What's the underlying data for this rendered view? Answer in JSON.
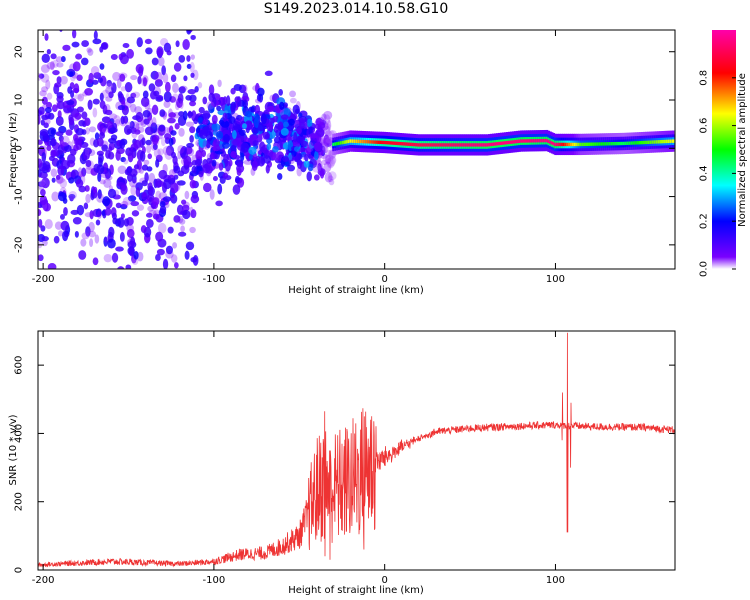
{
  "title": "S149.2023.014.10.58.G10",
  "chart_data": [
    {
      "type": "heatmap",
      "title": "",
      "xlabel": "Height of straight line (km)",
      "ylabel": "Frequency (Hz)",
      "xlim": [
        -203,
        170
      ],
      "ylim": [
        -25,
        24.5
      ],
      "x_ticks": [
        -200,
        -100,
        0,
        100
      ],
      "y_ticks": [
        -20,
        -10,
        0,
        10,
        20
      ],
      "colorbar": {
        "label": "Normalized spectral amplitude",
        "range": [
          0,
          1
        ],
        "ticks": [
          0.0,
          0.2,
          0.4,
          0.6,
          0.8
        ],
        "tick_labels": [
          "0.0",
          "0.2",
          "0.4",
          "0.6",
          "0.8"
        ],
        "colors": [
          "#ffffff",
          "#7a00ff",
          "#0000ff",
          "#00ffff",
          "#00ff00",
          "#ffff00",
          "#ff0000",
          "#ff00ff"
        ]
      },
      "features": {
        "scatter_region_x": [
          -203,
          -30
        ],
        "scatter_intensity_x": [
          -203,
          -45
        ],
        "stable_band": [
          {
            "x": -30,
            "freq": 0.8,
            "amp": 0.4
          },
          {
            "x": -20,
            "freq": 1.5,
            "amp": 0.6
          },
          {
            "x": 0,
            "freq": 1.2,
            "amp": 0.8
          },
          {
            "x": 20,
            "freq": 0.7,
            "amp": 0.85
          },
          {
            "x": 60,
            "freq": 0.7,
            "amp": 0.9
          },
          {
            "x": 80,
            "freq": 1.5,
            "amp": 0.9
          },
          {
            "x": 95,
            "freq": 1.6,
            "amp": 0.9
          },
          {
            "x": 100,
            "freq": 0.8,
            "amp": 0.9
          },
          {
            "x": 115,
            "freq": 0.8,
            "amp": 0.5
          },
          {
            "x": 140,
            "freq": 1.0,
            "amp": 0.4
          },
          {
            "x": 170,
            "freq": 1.5,
            "amp": 0.6
          }
        ]
      }
    },
    {
      "type": "line",
      "title": "",
      "xlabel": "Height of straight line (km)",
      "ylabel": "SNR (10 * v/v)",
      "xlim": [
        -203,
        170
      ],
      "ylim": [
        0,
        700
      ],
      "x_ticks": [
        -200,
        -100,
        0,
        100
      ],
      "y_ticks": [
        0,
        200,
        400,
        600
      ],
      "series": [
        {
          "color": "#ee3333",
          "envelope": [
            {
              "x": -203,
              "y": 15
            },
            {
              "x": -160,
              "y": 25
            },
            {
              "x": -120,
              "y": 18
            },
            {
              "x": -100,
              "y": 25
            },
            {
              "x": -85,
              "y": 45
            },
            {
              "x": -70,
              "y": 50
            },
            {
              "x": -60,
              "y": 70
            },
            {
              "x": -50,
              "y": 100
            },
            {
              "x": -45,
              "y": 160
            },
            {
              "x": -40,
              "y": 230
            },
            {
              "x": -35,
              "y": 260
            },
            {
              "x": -30,
              "y": 240
            },
            {
              "x": -20,
              "y": 260
            },
            {
              "x": -10,
              "y": 300
            },
            {
              "x": 0,
              "y": 330
            },
            {
              "x": 10,
              "y": 360
            },
            {
              "x": 20,
              "y": 385
            },
            {
              "x": 30,
              "y": 405
            },
            {
              "x": 50,
              "y": 415
            },
            {
              "x": 80,
              "y": 422
            },
            {
              "x": 100,
              "y": 425
            },
            {
              "x": 120,
              "y": 420
            },
            {
              "x": 150,
              "y": 418
            },
            {
              "x": 170,
              "y": 410
            }
          ],
          "spikes": [
            {
              "x": -35,
              "ymin": 40,
              "ymax": 465
            },
            {
              "x": -32,
              "ymin": 30,
              "ymax": 350
            },
            {
              "x": -12,
              "ymin": 60,
              "ymax": 450
            },
            {
              "x": 104,
              "ymin": 380,
              "ymax": 520
            },
            {
              "x": 107,
              "ymin": 110,
              "ymax": 695
            },
            {
              "x": 109,
              "ymin": 300,
              "ymax": 490
            }
          ]
        }
      ]
    }
  ]
}
